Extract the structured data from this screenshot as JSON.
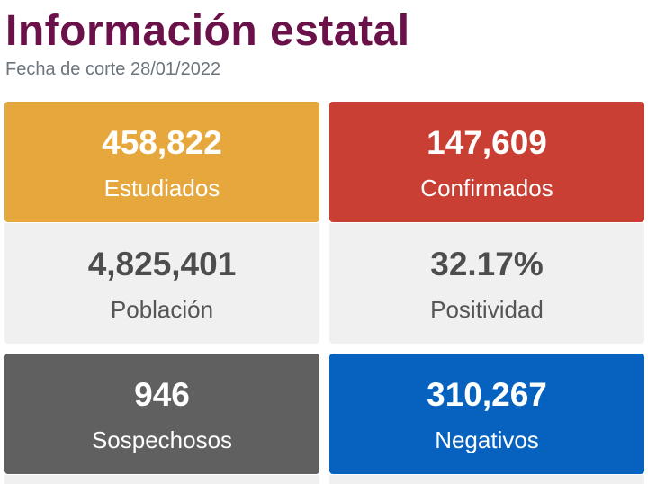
{
  "header": {
    "title": "Información estatal",
    "subtitle": "Fecha de corte 28/01/2022"
  },
  "cards": [
    {
      "value": "458,822",
      "label": "Estudiados",
      "color": "#e6a83c"
    },
    {
      "value": "147,609",
      "label": "Confirmados",
      "color": "#c93f33"
    },
    {
      "value": "4,825,401",
      "label": "Población",
      "color": "#f0f0f0"
    },
    {
      "value": "32.17%",
      "label": "Positividad",
      "color": "#f0f0f0"
    },
    {
      "value": "946",
      "label": "Sospechosos",
      "color": "#606060"
    },
    {
      "value": "310,267",
      "label": "Negativos",
      "color": "#0662be"
    }
  ]
}
